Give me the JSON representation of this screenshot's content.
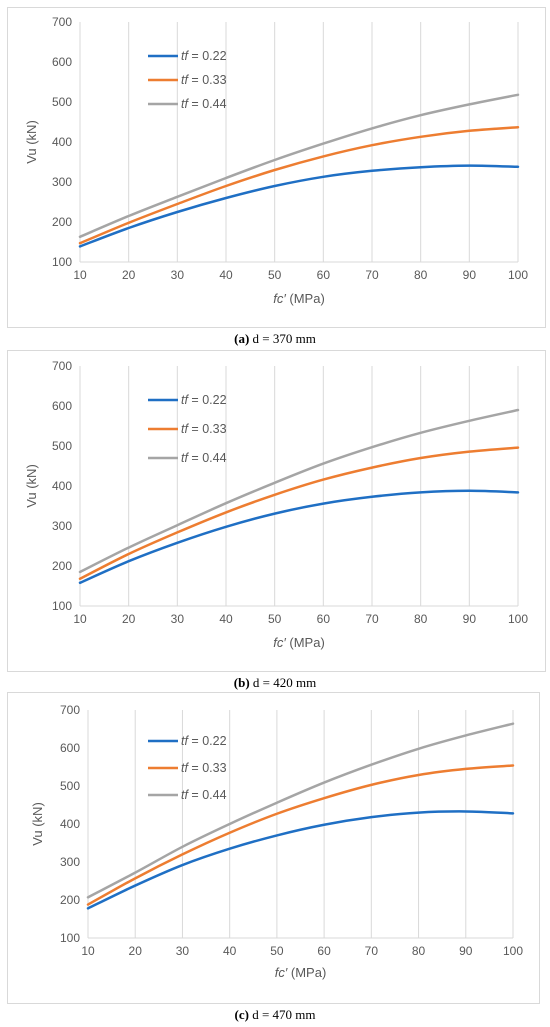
{
  "chart_data": [
    {
      "type": "line",
      "caption_letter": "(a)",
      "caption_text": "d = 370 mm",
      "xlabel_italic": "fc′",
      "xlabel_rest": " (MPa)",
      "ylabel": "Vu (kN)",
      "xlim": [
        10,
        100
      ],
      "ylim": [
        100,
        700
      ],
      "xticks": [
        10,
        20,
        30,
        40,
        50,
        60,
        70,
        80,
        90,
        100
      ],
      "yticks": [
        100,
        200,
        300,
        400,
        500,
        600,
        700
      ],
      "grid": "vertical",
      "legend_position": "top-left",
      "x": [
        10,
        20,
        30,
        40,
        50,
        60,
        70,
        80,
        90,
        100
      ],
      "series": [
        {
          "name_italic": "tf",
          "name_rest": " = 0.22",
          "color": "#1f6fc4",
          "values": [
            139,
            185,
            225,
            260,
            290,
            313,
            328,
            337,
            341,
            338
          ]
        },
        {
          "name_italic": "tf",
          "name_rest": " = 0.33",
          "color": "#ed7d31",
          "values": [
            147,
            198,
            245,
            290,
            330,
            364,
            392,
            413,
            428,
            437
          ]
        },
        {
          "name_italic": "tf",
          "name_rest": " = 0.44",
          "color": "#a5a5a5",
          "values": [
            163,
            215,
            263,
            310,
            355,
            396,
            434,
            467,
            494,
            518
          ]
        }
      ]
    },
    {
      "type": "line",
      "caption_letter": "(b)",
      "caption_text": "d = 420 mm",
      "xlabel_italic": "fc′",
      "xlabel_rest": " (MPa)",
      "ylabel": "Vu (kN)",
      "xlim": [
        10,
        100
      ],
      "ylim": [
        100,
        700
      ],
      "xticks": [
        10,
        20,
        30,
        40,
        50,
        60,
        70,
        80,
        90,
        100
      ],
      "yticks": [
        100,
        200,
        300,
        400,
        500,
        600,
        700
      ],
      "grid": "vertical",
      "legend_position": "top-left",
      "x": [
        10,
        20,
        30,
        40,
        50,
        60,
        70,
        80,
        90,
        100
      ],
      "series": [
        {
          "name_italic": "tf",
          "name_rest": " = 0.22",
          "color": "#1f6fc4",
          "values": [
            158,
            212,
            258,
            298,
            331,
            356,
            373,
            384,
            388,
            384
          ]
        },
        {
          "name_italic": "tf",
          "name_rest": " = 0.33",
          "color": "#ed7d31",
          "values": [
            168,
            230,
            284,
            334,
            378,
            416,
            446,
            470,
            486,
            496
          ]
        },
        {
          "name_italic": "tf",
          "name_rest": " = 0.44",
          "color": "#a5a5a5",
          "values": [
            185,
            246,
            302,
            357,
            408,
            456,
            497,
            533,
            563,
            590
          ]
        }
      ]
    },
    {
      "type": "line",
      "caption_letter": "(c)",
      "caption_text": "d = 470 mm",
      "xlabel_italic": "fc′",
      "xlabel_rest": " (MPa)",
      "ylabel": "Vu (kN)",
      "xlim": [
        10,
        100
      ],
      "ylim": [
        100,
        700
      ],
      "xticks": [
        10,
        20,
        30,
        40,
        50,
        60,
        70,
        80,
        90,
        100
      ],
      "yticks": [
        100,
        200,
        300,
        400,
        500,
        600,
        700
      ],
      "grid": "vertical",
      "legend_position": "top-left",
      "x": [
        10,
        20,
        30,
        40,
        50,
        60,
        70,
        80,
        90,
        100
      ],
      "series": [
        {
          "name_italic": "tf",
          "name_rest": " = 0.22",
          "color": "#1f6fc4",
          "values": [
            178,
            238,
            292,
            335,
            370,
            398,
            418,
            430,
            433,
            428
          ]
        },
        {
          "name_italic": "tf",
          "name_rest": " = 0.33",
          "color": "#ed7d31",
          "values": [
            188,
            257,
            320,
            377,
            427,
            468,
            503,
            529,
            545,
            554
          ]
        },
        {
          "name_italic": "tf",
          "name_rest": " = 0.44",
          "color": "#a5a5a5",
          "values": [
            207,
            272,
            340,
            400,
            456,
            509,
            556,
            598,
            633,
            664
          ]
        }
      ]
    }
  ]
}
